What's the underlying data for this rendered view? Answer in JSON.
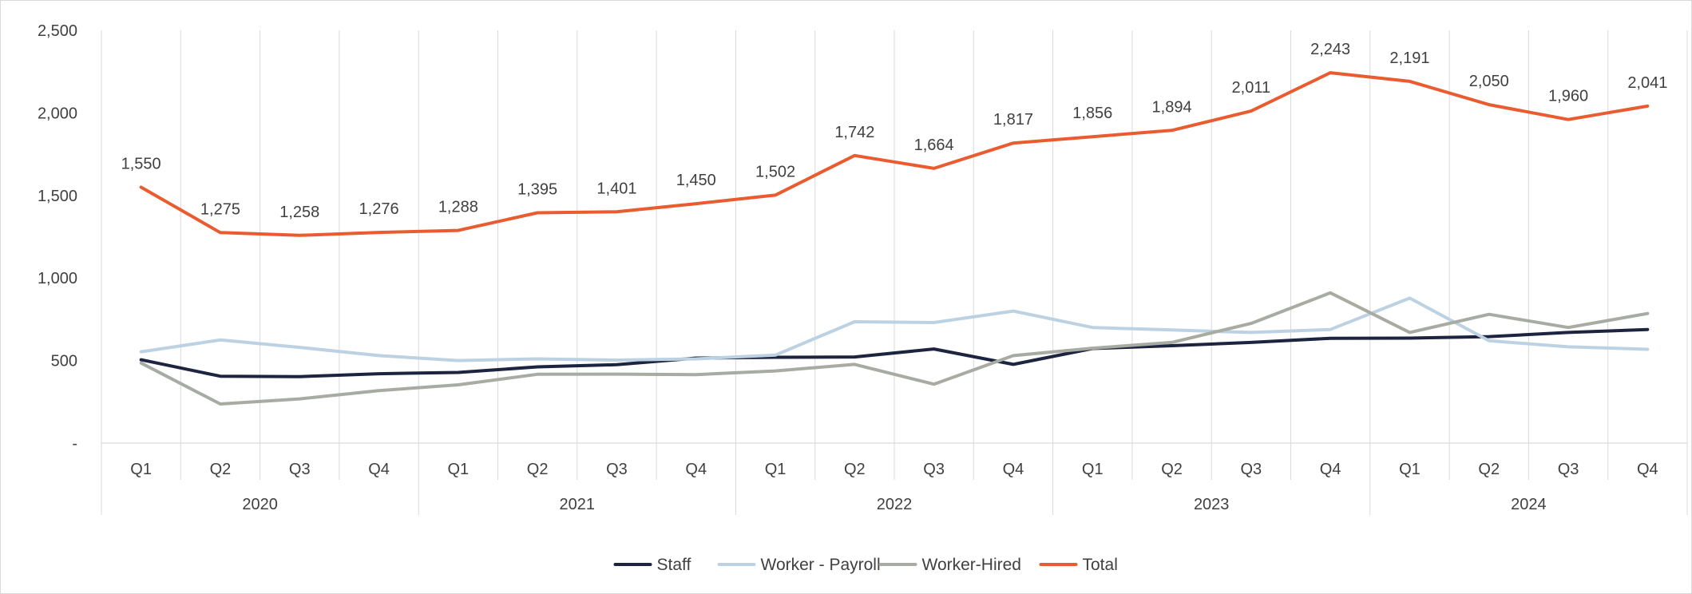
{
  "chart_data": {
    "type": "line",
    "title": "",
    "xlabel": "",
    "ylabel": "",
    "ylim": [
      0,
      2500
    ],
    "yticks": [
      0,
      500,
      1000,
      1500,
      2000,
      2500
    ],
    "ytick_labels": [
      "-",
      "500",
      "1,000",
      "1,500",
      "2,000",
      "2,500"
    ],
    "years": [
      "2020",
      "2021",
      "2022",
      "2023",
      "2024"
    ],
    "quarters": [
      "Q1",
      "Q2",
      "Q3",
      "Q4"
    ],
    "categories": [
      "2020 Q1",
      "2020 Q2",
      "2020 Q3",
      "2020 Q4",
      "2021 Q1",
      "2021 Q2",
      "2021 Q3",
      "2021 Q4",
      "2022 Q1",
      "2022 Q2",
      "2022 Q3",
      "2022 Q4",
      "2023 Q1",
      "2023 Q2",
      "2023 Q3",
      "2023 Q4",
      "2024 Q1",
      "2024 Q2",
      "2024 Q3",
      "2024 Q4"
    ],
    "series": [
      {
        "name": "Staff",
        "color": "#1c2440",
        "values": [
          505,
          405,
          403,
          420,
          428,
          462,
          475,
          515,
          520,
          522,
          570,
          477,
          573,
          590,
          610,
          635,
          636,
          645,
          670,
          688
        ]
      },
      {
        "name": "Worker - Payroll",
        "color": "#bcd2e2",
        "values": [
          553,
          625,
          580,
          530,
          500,
          510,
          503,
          510,
          533,
          735,
          730,
          800,
          700,
          685,
          670,
          688,
          878,
          620,
          583,
          568
        ]
      },
      {
        "name": "Worker-Hired",
        "color": "#a7aba2",
        "values": [
          485,
          237,
          268,
          318,
          353,
          417,
          418,
          415,
          437,
          477,
          357,
          530,
          575,
          610,
          725,
          910,
          670,
          780,
          700,
          785
        ]
      },
      {
        "name": "Total",
        "color": "#ea5b2f",
        "values": [
          1550,
          1275,
          1258,
          1276,
          1288,
          1395,
          1401,
          1450,
          1502,
          1742,
          1664,
          1817,
          1856,
          1894,
          2011,
          2243,
          2191,
          2050,
          1960,
          2041
        ],
        "data_labels": [
          "1,550",
          "1,275",
          "1,258",
          "1,276",
          "1,288",
          "1,395",
          "1,401",
          "1,450",
          "1,502",
          "1,742",
          "1,664",
          "1,817",
          "1,856",
          "1,894",
          "2,011",
          "2,243",
          "2,191",
          "2,050",
          "1,960",
          "2,041"
        ]
      }
    ],
    "legend": {
      "position": "bottom",
      "items": [
        "Staff",
        "Worker - Payroll",
        "Worker-Hired",
        "Total"
      ]
    },
    "grid": "vertical"
  }
}
